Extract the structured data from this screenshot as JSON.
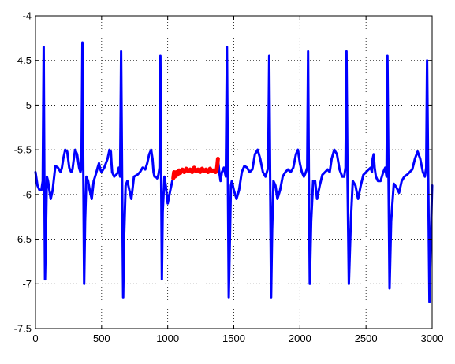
{
  "chart_data": {
    "type": "line",
    "title": "",
    "xlabel": "",
    "ylabel": "",
    "xlim": [
      0,
      3000
    ],
    "ylim": [
      -7.5,
      -4
    ],
    "xticks": [
      0,
      500,
      1000,
      1500,
      2000,
      2500,
      3000
    ],
    "yticks": [
      -4,
      -4.5,
      -5,
      -5.5,
      -6,
      -6.5,
      -7,
      -7.5
    ],
    "xtick_labels": [
      "0",
      "500",
      "1000",
      "1500",
      "2000",
      "2500",
      "3000"
    ],
    "ytick_labels": [
      "-4",
      "-4.5",
      "-5",
      "-5.5",
      "-6",
      "-6.5",
      "-7",
      "-7.5"
    ],
    "grid": true,
    "grid_style": "dotted",
    "series": [
      {
        "color": "#0000ff",
        "segments": [
          {
            "x": [
              0,
              15,
              30,
              45,
              55,
              62,
              67,
              72,
              78,
              86,
              95,
              105,
              115,
              130,
              150,
              170,
              190,
              200,
              210,
              225,
              240,
              255,
              270,
              280,
              290,
              300,
              315,
              330,
              340,
              348,
              355,
              362,
              368,
              375,
              385,
              398,
              410,
              425,
              440,
              455,
              470,
              480,
              490,
              500,
              520,
              545,
              560,
              570,
              575,
              580,
              595,
              610,
              620,
              630,
              640,
              648,
              655,
              663,
              670,
              682,
              695,
              710,
              725,
              745,
              770,
              790,
              810,
              830,
              845,
              860,
              875,
              885,
              893,
              900,
              910,
              920,
              930,
              938,
              945,
              950,
              956,
              962,
              975,
              985,
              1000,
              1020,
              1035,
              1042
            ],
            "y": [
              -5.75,
              -5.9,
              -5.95,
              -5.95,
              -5.85,
              -4.35,
              -5.8,
              -6.95,
              -6.5,
              -5.8,
              -5.85,
              -5.95,
              -6.05,
              -5.95,
              -5.68,
              -5.7,
              -5.75,
              -5.7,
              -5.6,
              -5.5,
              -5.52,
              -5.7,
              -5.75,
              -5.72,
              -5.6,
              -5.5,
              -5.55,
              -5.7,
              -5.75,
              -5.7,
              -4.3,
              -5.8,
              -7.0,
              -6.3,
              -5.8,
              -5.85,
              -5.95,
              -6.05,
              -5.85,
              -5.78,
              -5.7,
              -5.65,
              -5.72,
              -5.75,
              -5.7,
              -5.6,
              -5.5,
              -5.52,
              -5.65,
              -5.75,
              -5.8,
              -5.78,
              -5.76,
              -5.7,
              -5.8,
              -4.4,
              -5.8,
              -7.15,
              -6.5,
              -5.9,
              -5.85,
              -5.95,
              -6.05,
              -5.8,
              -5.78,
              -5.75,
              -5.7,
              -5.72,
              -5.65,
              -5.55,
              -5.5,
              -5.6,
              -5.75,
              -5.8,
              -5.8,
              -5.82,
              -5.78,
              -5.7,
              -4.45,
              -5.7,
              -6.95,
              -6.2,
              -5.8,
              -5.9,
              -6.1,
              -5.95,
              -5.85,
              -5.82
            ]
          },
          {
            "x": [
              1380,
              1390,
              1400,
              1410,
              1425,
              1440,
              1448,
              1455,
              1462,
              1470,
              1478,
              1485,
              1500,
              1520,
              1540,
              1560,
              1580,
              1600,
              1620,
              1640,
              1660,
              1680,
              1700,
              1720,
              1740,
              1760,
              1768,
              1775,
              1782,
              1790,
              1800,
              1815,
              1830,
              1850,
              1870,
              1890,
              1910,
              1930,
              1950,
              1970,
              1985,
              2000,
              2015,
              2030,
              2045,
              2055,
              2062,
              2068,
              2075,
              2085,
              2100,
              2115,
              2130,
              2150,
              2170,
              2190,
              2210,
              2225,
              2240,
              2260,
              2280,
              2300,
              2320,
              2335,
              2345,
              2352,
              2360,
              2370,
              2385,
              2400,
              2420,
              2440,
              2460,
              2480,
              2500,
              2520,
              2535,
              2545,
              2550,
              2558,
              2565,
              2575,
              2590,
              2610,
              2630,
              2645,
              2655,
              2662,
              2670,
              2678,
              2690,
              2710,
              2730,
              2750,
              2770,
              2790,
              2810,
              2830,
              2850,
              2870,
              2890,
              2910,
              2930,
              2945,
              2955,
              2962,
              2970,
              2980,
              2990,
              3000
            ],
            "y": [
              -5.6,
              -5.75,
              -5.85,
              -5.75,
              -5.7,
              -5.8,
              -4.35,
              -5.8,
              -7.15,
              -6.5,
              -5.9,
              -5.85,
              -5.95,
              -6.05,
              -5.95,
              -5.75,
              -5.68,
              -5.7,
              -5.75,
              -5.72,
              -5.55,
              -5.5,
              -5.6,
              -5.75,
              -5.8,
              -5.7,
              -4.45,
              -5.8,
              -7.15,
              -6.4,
              -5.85,
              -5.9,
              -6.05,
              -5.95,
              -5.8,
              -5.75,
              -5.72,
              -5.75,
              -5.7,
              -5.55,
              -5.5,
              -5.65,
              -5.75,
              -5.8,
              -5.75,
              -5.7,
              -4.4,
              -5.8,
              -7.0,
              -6.3,
              -5.85,
              -5.85,
              -6.05,
              -5.9,
              -5.78,
              -5.75,
              -5.72,
              -5.75,
              -5.6,
              -5.5,
              -5.55,
              -5.72,
              -5.8,
              -5.8,
              -5.7,
              -4.4,
              -5.8,
              -7.0,
              -6.3,
              -5.85,
              -5.9,
              -6.05,
              -5.9,
              -5.78,
              -5.75,
              -5.72,
              -5.7,
              -5.75,
              -5.6,
              -5.55,
              -5.7,
              -5.8,
              -5.85,
              -5.85,
              -5.75,
              -5.7,
              -5.8,
              -4.45,
              -5.8,
              -7.05,
              -6.3,
              -5.88,
              -5.92,
              -5.98,
              -5.85,
              -5.8,
              -5.78,
              -5.75,
              -5.72,
              -5.6,
              -5.52,
              -5.6,
              -5.75,
              -5.8,
              -5.7,
              -4.5,
              -5.8,
              -7.2,
              -6.5,
              -5.9
            ]
          }
        ]
      },
      {
        "color": "#ff0000",
        "x": [
          1042,
          1048,
          1055,
          1065,
          1075,
          1085,
          1095,
          1110,
          1125,
          1140,
          1155,
          1170,
          1185,
          1200,
          1215,
          1230,
          1245,
          1260,
          1275,
          1290,
          1305,
          1320,
          1335,
          1350,
          1362,
          1372,
          1380
        ],
        "y": [
          -5.82,
          -5.75,
          -5.8,
          -5.75,
          -5.78,
          -5.73,
          -5.76,
          -5.72,
          -5.75,
          -5.71,
          -5.74,
          -5.72,
          -5.75,
          -5.7,
          -5.74,
          -5.72,
          -5.75,
          -5.71,
          -5.74,
          -5.72,
          -5.75,
          -5.71,
          -5.74,
          -5.73,
          -5.75,
          -5.72,
          -5.6
        ]
      }
    ]
  }
}
